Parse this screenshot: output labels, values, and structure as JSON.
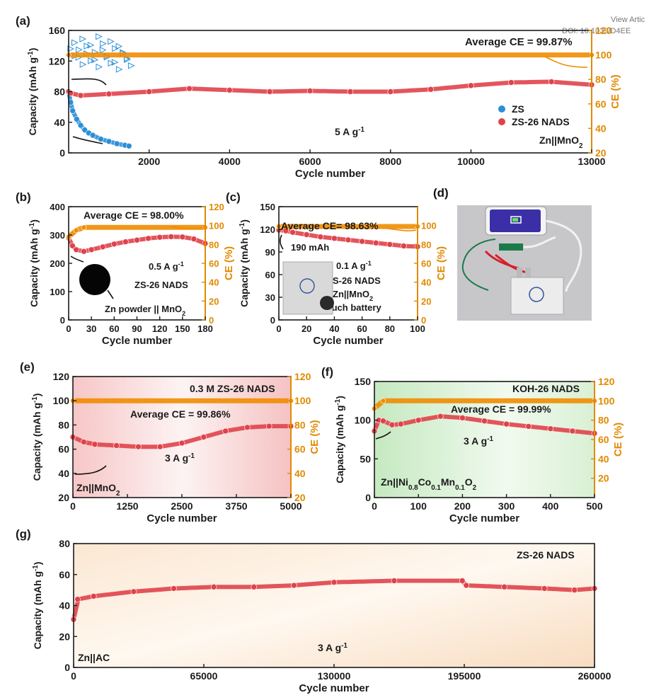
{
  "header": {
    "view_article": "View Artic",
    "doi": "DOI: 10.1039/D4EE"
  },
  "colors": {
    "zs": "#2b8fd6",
    "nads": "#e0424a",
    "ce": "#f08c00",
    "axis": "#1a1a1a",
    "ce_axis": "#e08a00"
  },
  "chart_data": [
    {
      "panel": "(a)",
      "type": "scatter",
      "xlabel": "Cycle number",
      "ylabel": "Capacity (mAh g-1)",
      "y2label": "CE (%)",
      "xlim": [
        0,
        13000
      ],
      "xticks": [
        2000,
        4000,
        6000,
        8000,
        10000,
        13000
      ],
      "ylim": [
        0,
        160
      ],
      "yticks": [
        0,
        40,
        80,
        120,
        160
      ],
      "y2lim": [
        20,
        120
      ],
      "y2ticks": [
        20,
        40,
        60,
        80,
        100,
        120
      ],
      "annotations": [
        "Average CE = 99.87%",
        "5 A g-1",
        "Zn||MnO2"
      ],
      "legend": [
        "ZS",
        "ZS-26 NADS"
      ],
      "series": [
        {
          "name": "ZS",
          "axis": "left",
          "x": [
            0,
            50,
            100,
            200,
            300,
            400,
            500,
            600,
            800,
            1000,
            1200,
            1400,
            1500
          ],
          "values": [
            80,
            66,
            55,
            44,
            36,
            30,
            26,
            23,
            18,
            15,
            12,
            10,
            9
          ]
        },
        {
          "name": "ZS-26 NADS",
          "axis": "left",
          "x": [
            0,
            50,
            300,
            1000,
            2000,
            3000,
            4000,
            5000,
            6000,
            7000,
            8000,
            9000,
            10000,
            11000,
            12000,
            13000
          ],
          "values": [
            80,
            78,
            75,
            77,
            80,
            84,
            82,
            80,
            81,
            80,
            80,
            83,
            88,
            92,
            93,
            89
          ]
        },
        {
          "name": "ZS CE",
          "axis": "right",
          "x": [
            50,
            150,
            250,
            350,
            450,
            550,
            650,
            750,
            850,
            950,
            1050,
            1150,
            1250,
            1350,
            1450
          ],
          "values": [
            105,
            110,
            98,
            113,
            101,
            108,
            96,
            115,
            104,
            99,
            111,
            94,
            107,
            102,
            97
          ]
        },
        {
          "name": "ZS-26 NADS CE",
          "axis": "right",
          "x": [
            0,
            13000
          ],
          "values": [
            100,
            100
          ]
        }
      ]
    },
    {
      "panel": "(b)",
      "type": "scatter",
      "xlabel": "Cycle number",
      "ylabel": "Capacity (mAh g-1)",
      "y2label": "CE (%)",
      "xlim": [
        0,
        180
      ],
      "xticks": [
        0,
        30,
        60,
        90,
        120,
        150,
        180
      ],
      "ylim": [
        0,
        400
      ],
      "yticks": [
        0,
        100,
        200,
        300,
        400
      ],
      "y2lim": [
        0,
        120
      ],
      "y2ticks": [
        0,
        20,
        40,
        60,
        80,
        100,
        120
      ],
      "annotations": [
        "Average CE = 98.00%",
        "0.5 A g-1",
        "ZS-26 NADS",
        "Zn powder || MnO2"
      ],
      "series": [
        {
          "name": "Capacity",
          "axis": "left",
          "x": [
            0,
            5,
            10,
            20,
            30,
            45,
            60,
            75,
            90,
            105,
            120,
            135,
            150,
            165,
            180
          ],
          "values": [
            290,
            262,
            248,
            242,
            248,
            258,
            268,
            276,
            282,
            288,
            292,
            294,
            293,
            286,
            270
          ]
        },
        {
          "name": "CE",
          "axis": "right",
          "x": [
            0,
            10,
            20,
            180
          ],
          "values": [
            88,
            95,
            98,
            98
          ]
        }
      ]
    },
    {
      "panel": "(c)",
      "type": "scatter",
      "xlabel": "Cycle number",
      "ylabel": "Capacity (mAh g-1)",
      "y2label": "CE (%)",
      "xlim": [
        0,
        100
      ],
      "xticks": [
        0,
        20,
        40,
        60,
        80,
        100
      ],
      "ylim": [
        0,
        150
      ],
      "yticks": [
        0,
        30,
        60,
        90,
        120,
        150
      ],
      "y2lim": [
        0,
        120
      ],
      "y2ticks": [
        0,
        20,
        40,
        60,
        80,
        100
      ],
      "annotations": [
        "Average CE= 98.63%",
        "190 mAh",
        "0.1 A g-1",
        "ZS-26 NADS",
        "Zn||MnO2",
        "Pouch battery"
      ],
      "series": [
        {
          "name": "Capacity",
          "axis": "left",
          "x": [
            0,
            5,
            10,
            20,
            30,
            40,
            50,
            60,
            70,
            80,
            90,
            100
          ],
          "values": [
            119,
            118,
            116,
            113,
            110,
            108,
            106,
            104,
            102,
            100,
            98,
            97
          ]
        },
        {
          "name": "CE",
          "axis": "right",
          "x": [
            0,
            100
          ],
          "values": [
            99,
            99
          ]
        }
      ]
    },
    {
      "panel": "(e)",
      "type": "scatter",
      "xlabel": "Cycle number",
      "ylabel": "Capacity (mAh g-1)",
      "y2label": "CE (%)",
      "xlim": [
        0,
        5000
      ],
      "xticks": [
        0,
        1250,
        2500,
        3750,
        5000
      ],
      "ylim": [
        20,
        120
      ],
      "yticks": [
        20,
        40,
        60,
        80,
        100,
        120
      ],
      "y2lim": [
        20,
        120
      ],
      "y2ticks": [
        20,
        40,
        60,
        80,
        100,
        120
      ],
      "annotations": [
        "0.3 M ZS-26 NADS",
        "Average CE = 99.86%",
        "3 A g-1",
        "Zn||MnO2"
      ],
      "series": [
        {
          "name": "Capacity",
          "axis": "left",
          "x": [
            0,
            250,
            500,
            1000,
            1500,
            2000,
            2500,
            3000,
            3500,
            4000,
            4500,
            5000
          ],
          "values": [
            70,
            66,
            64,
            63,
            62,
            62,
            65,
            70,
            75,
            78,
            79,
            79
          ]
        },
        {
          "name": "CE",
          "axis": "right",
          "x": [
            0,
            5000
          ],
          "values": [
            100,
            100
          ]
        }
      ]
    },
    {
      "panel": "(f)",
      "type": "scatter",
      "xlabel": "Cycle number",
      "ylabel": "Capacity (mAh g-1)",
      "y2label": "CE (%)",
      "xlim": [
        0,
        500
      ],
      "xticks": [
        0,
        100,
        200,
        300,
        400,
        500
      ],
      "ylim": [
        0,
        150
      ],
      "yticks": [
        0,
        50,
        100,
        150
      ],
      "y2lim": [
        0,
        120
      ],
      "y2ticks": [
        20,
        40,
        60,
        80,
        100,
        120
      ],
      "annotations": [
        "KOH-26 NADS",
        "Average CE = 99.99%",
        "3 A g-1",
        "Zn||Ni0.8Co0.1Mn0.1O2"
      ],
      "series": [
        {
          "name": "Capacity",
          "axis": "left",
          "x": [
            0,
            10,
            20,
            40,
            60,
            100,
            150,
            200,
            250,
            300,
            350,
            400,
            450,
            500
          ],
          "values": [
            86,
            100,
            99,
            94,
            95,
            100,
            105,
            103,
            99,
            95,
            92,
            89,
            86,
            83
          ]
        },
        {
          "name": "CE",
          "axis": "right",
          "x": [
            0,
            20,
            500
          ],
          "values": [
            92,
            100,
            100
          ]
        }
      ]
    },
    {
      "panel": "(g)",
      "type": "scatter",
      "xlabel": "Cycle number",
      "ylabel": "Capacity (mAh g-1)",
      "xlim": [
        0,
        260000
      ],
      "xticks": [
        0,
        65000,
        130000,
        195000,
        260000
      ],
      "ylim": [
        0,
        80
      ],
      "yticks": [
        0,
        20,
        40,
        60,
        80
      ],
      "annotations": [
        "ZS-26 NADS",
        "3 A g-1",
        "Zn||AC"
      ],
      "series": [
        {
          "name": "Capacity",
          "axis": "left",
          "x": [
            0,
            2000,
            10000,
            30000,
            50000,
            70000,
            90000,
            110000,
            130000,
            160000,
            194000,
            196000,
            215000,
            235000,
            250000,
            260000
          ],
          "values": [
            31,
            44,
            46,
            49,
            51,
            52,
            52,
            53,
            55,
            56,
            56,
            53,
            52,
            51,
            50,
            51
          ]
        }
      ]
    }
  ],
  "photo_labels": {
    "panel_d": "(d)"
  }
}
